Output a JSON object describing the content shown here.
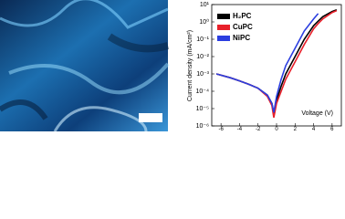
{
  "chart_data": {
    "type": "line",
    "yscale": "log",
    "xlabel": "Voltage (V)",
    "ylabel": "Current density (mA/cm²)",
    "x": [
      -6.5,
      -5,
      -4,
      -3,
      -2,
      -1,
      -0.5,
      -0.3,
      0,
      0.5,
      1,
      2,
      3,
      4,
      4.5,
      5,
      6,
      6.5
    ],
    "series": [
      {
        "name": "H₂PC",
        "color": "#000000",
        "values": [
          0.001,
          0.0006,
          0.0004,
          0.00025,
          0.00015,
          6e-05,
          2e-05,
          5e-06,
          3e-05,
          0.0002,
          0.001,
          0.01,
          0.1,
          0.6,
          1.1,
          2,
          4,
          5
        ]
      },
      {
        "name": "CuPC",
        "color": "#e8202a",
        "values": [
          0.001,
          0.0006,
          0.0004,
          0.00025,
          0.00015,
          5e-05,
          1.5e-05,
          3e-06,
          2e-05,
          0.0001,
          0.0005,
          0.005,
          0.05,
          0.4,
          0.8,
          1.5,
          3.5,
          4.5
        ]
      },
      {
        "name": "NiPC",
        "color": "#2b3ee0",
        "values": [
          0.001,
          0.0006,
          0.0004,
          0.00025,
          0.00015,
          6e-05,
          2e-05,
          6e-06,
          5e-05,
          0.0005,
          0.003,
          0.03,
          0.3,
          1.5,
          3,
          null,
          null,
          null
        ]
      }
    ],
    "xlim": [
      -7,
      7
    ],
    "xticks": [
      -6,
      -4,
      -2,
      0,
      2,
      4,
      6
    ],
    "ylim": [
      1e-06,
      10
    ],
    "yticks": [
      {
        "value": 10,
        "label": "10¹"
      },
      {
        "value": 1,
        "label": "10⁰"
      },
      {
        "value": 0.1,
        "label": "10⁻¹"
      },
      {
        "value": 0.01,
        "label": "10⁻²"
      },
      {
        "value": 0.001,
        "label": "10⁻³"
      },
      {
        "value": 0.0001,
        "label": "10⁻⁴"
      },
      {
        "value": 1e-05,
        "label": "10⁻⁵"
      },
      {
        "value": 1e-06,
        "label": "10⁻⁶"
      }
    ],
    "legend": "upper-left"
  }
}
